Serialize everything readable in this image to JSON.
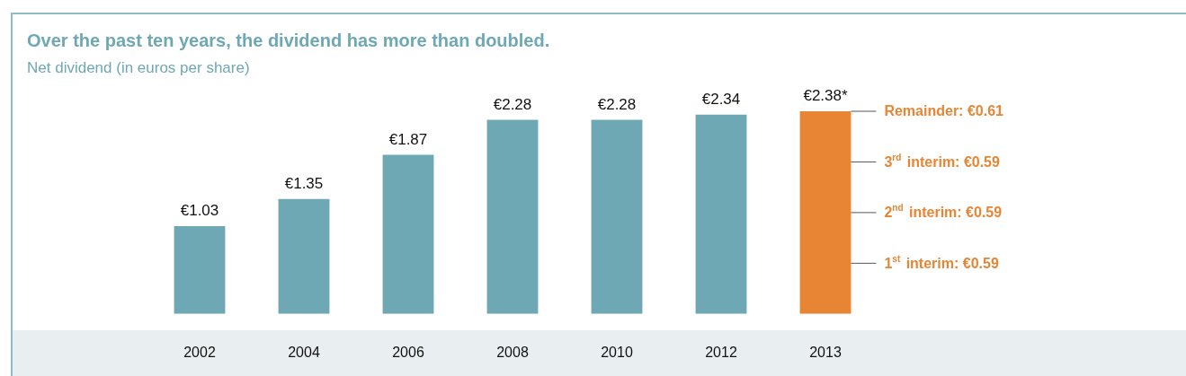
{
  "chart_data": {
    "type": "bar",
    "title": "Over the past ten years, the dividend has more than doubled.",
    "subtitle": "Net dividend (in euros per share)",
    "categories": [
      "2002",
      "2004",
      "2006",
      "2008",
      "2010",
      "2012",
      "2013"
    ],
    "values": [
      1.03,
      1.35,
      1.87,
      2.28,
      2.28,
      2.34,
      2.38
    ],
    "colors": [
      "#6fa8b5",
      "#6fa8b5",
      "#6fa8b5",
      "#6fa8b5",
      "#6fa8b5",
      "#6fa8b5",
      "#e88534"
    ],
    "value_labels": [
      "€1.03",
      "€1.35",
      "€1.87",
      "€2.28",
      "€2.28",
      "€2.34",
      "€2.38*"
    ],
    "annotations": [
      "Remainder: €0.61",
      "3$^{rd}$ interim: €0.59",
      "2$^{nd}$ interim: €0.59",
      "1$^{st}$ interim: €0.59"
    ],
    "grid": false,
    "legend": false
  }
}
